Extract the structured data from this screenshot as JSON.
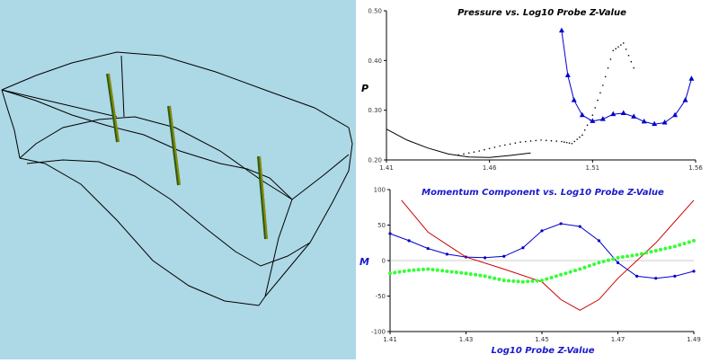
{
  "viewport": {
    "background": "#add8e6",
    "probe_color": "#8b8b00"
  },
  "pressure_plot": {
    "title": "Pressure vs. Log10 Probe Z-Value",
    "ylabel": "P",
    "title_color": "#000000"
  },
  "momentum_plot": {
    "title": "Momentum Component vs. Log10 Probe Z-Value",
    "ylabel": "M",
    "xlabel": "Log10 Probe Z-Value",
    "color": "#1a1acc"
  },
  "chart_data": [
    {
      "type": "line",
      "title": "Pressure vs. Log10 Probe Z-Value",
      "ylabel": "P",
      "xlabel": "",
      "xlim": [
        1.41,
        1.56
      ],
      "ylim": [
        0.2,
        0.5
      ],
      "x_ticks": [
        "1.41",
        "1.46",
        "1.51",
        "1.56"
      ],
      "y_ticks": [
        "0.20",
        "0.30",
        "0.40",
        "0.50"
      ],
      "grid": false,
      "series": [
        {
          "style": "solid-black",
          "color": "#000000",
          "x": [
            1.41,
            1.42,
            1.43,
            1.44,
            1.45,
            1.46,
            1.47,
            1.48
          ],
          "y": [
            0.262,
            0.24,
            0.224,
            0.212,
            0.206,
            0.205,
            0.209,
            0.214
          ]
        },
        {
          "style": "dotted-black",
          "color": "#000000",
          "x": [
            1.445,
            1.455,
            1.465,
            1.475,
            1.485,
            1.495,
            1.5,
            1.505,
            1.51,
            1.515,
            1.52,
            1.525,
            1.53
          ],
          "y": [
            0.21,
            0.218,
            0.228,
            0.236,
            0.24,
            0.237,
            0.233,
            0.25,
            0.29,
            0.35,
            0.42,
            0.435,
            0.385
          ]
        },
        {
          "style": "line-triangles",
          "color": "#0000cc",
          "x": [
            1.495,
            1.498,
            1.501,
            1.505,
            1.51,
            1.515,
            1.52,
            1.525,
            1.53,
            1.535,
            1.54,
            1.545,
            1.55,
            1.555,
            1.558
          ],
          "y": [
            0.46,
            0.37,
            0.32,
            0.29,
            0.278,
            0.282,
            0.292,
            0.294,
            0.287,
            0.277,
            0.272,
            0.275,
            0.29,
            0.32,
            0.363
          ]
        }
      ]
    },
    {
      "type": "line",
      "title": "Momentum Component vs. Log10 Probe Z-Value",
      "ylabel": "M",
      "xlabel": "Log10 Probe Z-Value",
      "xlim": [
        1.41,
        1.49
      ],
      "ylim": [
        -100,
        100
      ],
      "x_ticks": [
        "1.41",
        "1.43",
        "1.45",
        "1.47",
        "1.49"
      ],
      "y_ticks": [
        "100",
        "50",
        "0",
        "-50",
        "-100"
      ],
      "grid": false,
      "series": [
        {
          "style": "line-dots",
          "color": "#0000cc",
          "x": [
            1.41,
            1.415,
            1.42,
            1.425,
            1.43,
            1.435,
            1.44,
            1.445,
            1.45,
            1.455,
            1.46,
            1.465,
            1.47,
            1.475,
            1.48,
            1.485,
            1.49
          ],
          "y": [
            38,
            28,
            17,
            9,
            5,
            4,
            6,
            18,
            42,
            52,
            48,
            28,
            -3,
            -22,
            -25,
            -22,
            -15
          ]
        },
        {
          "style": "solid-red",
          "color": "#cc0000",
          "x": [
            1.413,
            1.42,
            1.43,
            1.44,
            1.45,
            1.455,
            1.46,
            1.465,
            1.47,
            1.48,
            1.49
          ],
          "y": [
            85,
            40,
            5,
            -12,
            -30,
            -55,
            -70,
            -55,
            -25,
            25,
            85
          ]
        },
        {
          "style": "dotted-green",
          "color": "#33ff33",
          "x": [
            1.41,
            1.415,
            1.42,
            1.425,
            1.43,
            1.435,
            1.44,
            1.445,
            1.45,
            1.455,
            1.46,
            1.465,
            1.47,
            1.475,
            1.48,
            1.485,
            1.49
          ],
          "y": [
            -18,
            -14,
            -12,
            -15,
            -18,
            -22,
            -28,
            -30,
            -28,
            -20,
            -12,
            -3,
            4,
            8,
            14,
            20,
            28
          ]
        }
      ]
    }
  ]
}
